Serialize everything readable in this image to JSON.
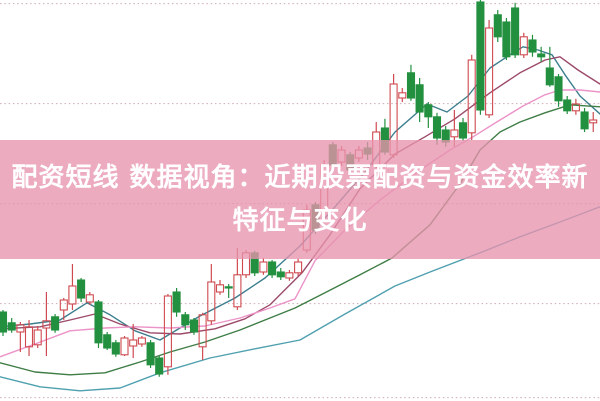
{
  "banner": {
    "title_line1": "配资短线 数据视角：近期股票配资与资金效率新",
    "title_line2": "特征与变化",
    "bg_color": "rgba(231,147,173,0.78)",
    "text_color": "#ffffff"
  },
  "chart_data": {
    "type": "candlestick",
    "title": "",
    "xlabel": "",
    "ylabel": "",
    "ylim": [
      0,
      100
    ],
    "grid": "horizontal-dotted",
    "legend": "none",
    "x_start": 3,
    "x_step": 8.68,
    "candle_width": 7,
    "up_color": "#cf4a50",
    "down_color": "#23903f",
    "grid_color": "#cfa9b4",
    "gridline_prices": [
      99.1,
      74.1,
      49.1,
      24.1,
      0.6
    ],
    "candles": [
      [
        22.0,
        22.5,
        16.0,
        17.0
      ],
      [
        19.3,
        20.5,
        16.8,
        17.5
      ],
      [
        17.0,
        19.5,
        12.0,
        18.8
      ],
      [
        13.3,
        20.0,
        11.0,
        18.3
      ],
      [
        13.8,
        18.5,
        13.0,
        17.5
      ],
      [
        18.0,
        27.0,
        11.0,
        19.8
      ],
      [
        20.8,
        21.5,
        16.8,
        17.5
      ],
      [
        22.5,
        25.5,
        20.0,
        25.0
      ],
      [
        24.0,
        34.0,
        22.5,
        28.5
      ],
      [
        30.0,
        30.5,
        24.5,
        25.5
      ],
      [
        24.5,
        27.0,
        23.8,
        26.3
      ],
      [
        24.5,
        25.0,
        13.0,
        14.3
      ],
      [
        16.3,
        17.0,
        12.5,
        13.0
      ],
      [
        14.3,
        15.0,
        10.8,
        11.5
      ],
      [
        11.3,
        16.0,
        11.0,
        15.5
      ],
      [
        13.5,
        19.0,
        10.5,
        15.0
      ],
      [
        14.0,
        16.0,
        13.3,
        15.5
      ],
      [
        14.3,
        15.0,
        8.0,
        8.8
      ],
      [
        10.5,
        11.0,
        5.8,
        6.5
      ],
      [
        8.3,
        26.5,
        6.3,
        26.0
      ],
      [
        27.0,
        28.0,
        20.8,
        22.0
      ],
      [
        21.3,
        22.0,
        17.5,
        18.8
      ],
      [
        20.0,
        20.5,
        16.3,
        17.0
      ],
      [
        13.3,
        21.8,
        10.0,
        21.3
      ],
      [
        19.8,
        34.0,
        18.8,
        29.5
      ],
      [
        27.0,
        30.0,
        26.3,
        28.8
      ],
      [
        28.3,
        29.0,
        25.5,
        28.0
      ],
      [
        23.3,
        38.0,
        22.5,
        31.3
      ],
      [
        31.3,
        37.5,
        30.5,
        36.8
      ],
      [
        36.8,
        37.3,
        31.0,
        31.8
      ],
      [
        32.0,
        35.5,
        31.3,
        34.5
      ],
      [
        34.5,
        35.0,
        30.5,
        31.3
      ],
      [
        32.0,
        33.0,
        30.0,
        30.8
      ],
      [
        30.5,
        32.5,
        29.8,
        31.8
      ],
      [
        31.8,
        35.3,
        31.0,
        34.5
      ],
      [
        37.5,
        48.8,
        36.8,
        47.5
      ],
      [
        48.8,
        49.5,
        41.5,
        42.5
      ],
      [
        47.5,
        60.0,
        46.5,
        58.8
      ],
      [
        63.8,
        64.5,
        57.5,
        58.8
      ],
      [
        59.5,
        63.5,
        58.5,
        62.5
      ],
      [
        61.3,
        62.0,
        56.3,
        57.5
      ],
      [
        60.5,
        63.5,
        59.5,
        62.5
      ],
      [
        63.0,
        64.5,
        60.0,
        61.5
      ],
      [
        58.8,
        69.5,
        58.0,
        67.0
      ],
      [
        68.0,
        70.3,
        61.3,
        62.0
      ],
      [
        61.3,
        81.5,
        60.5,
        79.0
      ],
      [
        75.5,
        78.0,
        74.5,
        76.8
      ],
      [
        81.8,
        83.8,
        74.8,
        75.5
      ],
      [
        78.8,
        80.5,
        69.5,
        72.0
      ],
      [
        73.8,
        74.5,
        68.0,
        70.8
      ],
      [
        70.8,
        71.8,
        63.8,
        65.5
      ],
      [
        67.5,
        68.5,
        63.3,
        64.5
      ],
      [
        65.8,
        72.5,
        63.3,
        67.5
      ],
      [
        69.3,
        70.5,
        64.8,
        65.5
      ],
      [
        66.8,
        86.3,
        65.0,
        85.0
      ],
      [
        99.5,
        100.0,
        71.3,
        72.5
      ],
      [
        71.3,
        95.0,
        70.5,
        93.0
      ],
      [
        96.3,
        97.5,
        89.5,
        90.8
      ],
      [
        94.5,
        95.5,
        85.0,
        85.8
      ],
      [
        98.0,
        99.3,
        85.5,
        86.3
      ],
      [
        86.3,
        91.8,
        85.5,
        90.8
      ],
      [
        90.0,
        91.3,
        85.8,
        87.0
      ],
      [
        86.5,
        88.3,
        84.5,
        85.8
      ],
      [
        83.0,
        88.3,
        78.3,
        78.8
      ],
      [
        80.8,
        81.5,
        73.3,
        74.8
      ],
      [
        75.0,
        76.0,
        71.5,
        72.3
      ],
      [
        72.3,
        75.3,
        71.3,
        74.0
      ],
      [
        72.0,
        73.0,
        67.0,
        67.8
      ],
      [
        69.3,
        72.0,
        67.0,
        70.0
      ]
    ],
    "ma_lines": [
      {
        "name": "ma-short-teal",
        "color": "#3c7e8e",
        "points": [
          [
            0,
            18.3
          ],
          [
            30,
            19.0
          ],
          [
            60,
            20.0
          ],
          [
            87,
            24.3
          ],
          [
            110,
            21.3
          ],
          [
            135,
            17.3
          ],
          [
            160,
            15.0
          ],
          [
            200,
            21.0
          ],
          [
            235,
            25.5
          ],
          [
            265,
            30.5
          ],
          [
            300,
            38.5
          ],
          [
            335,
            48.3
          ],
          [
            365,
            57.0
          ],
          [
            395,
            67.0
          ],
          [
            427,
            74.0
          ],
          [
            447,
            72.0
          ],
          [
            468,
            76.0
          ],
          [
            490,
            83.0
          ],
          [
            510,
            86.3
          ],
          [
            523,
            88.3
          ],
          [
            538,
            87.5
          ],
          [
            552,
            86.3
          ],
          [
            565,
            81.3
          ],
          [
            580,
            76.0
          ],
          [
            600,
            71.5
          ]
        ]
      },
      {
        "name": "ma-mid-maroon",
        "color": "#9c4a6a",
        "points": [
          [
            0,
            17.8
          ],
          [
            40,
            18.3
          ],
          [
            70,
            20.0
          ],
          [
            95,
            21.5
          ],
          [
            120,
            19.0
          ],
          [
            150,
            16.8
          ],
          [
            180,
            16.5
          ],
          [
            215,
            17.8
          ],
          [
            245,
            20.3
          ],
          [
            270,
            23.8
          ],
          [
            302,
            31.8
          ],
          [
            330,
            41.3
          ],
          [
            360,
            52.8
          ],
          [
            395,
            61.5
          ],
          [
            425,
            65.8
          ],
          [
            455,
            70.3
          ],
          [
            490,
            76.8
          ],
          [
            520,
            81.8
          ],
          [
            545,
            85.0
          ],
          [
            560,
            85.8
          ],
          [
            578,
            82.5
          ],
          [
            600,
            79.0
          ]
        ]
      },
      {
        "name": "ma-mid-magenta",
        "color": "#ec93c8",
        "points": [
          [
            0,
            10.8
          ],
          [
            35,
            14.0
          ],
          [
            70,
            17.3
          ],
          [
            105,
            18.0
          ],
          [
            135,
            18.3
          ],
          [
            170,
            18.0
          ],
          [
            205,
            18.5
          ],
          [
            240,
            20.5
          ],
          [
            270,
            23.0
          ],
          [
            295,
            25.3
          ],
          [
            315,
            34.8
          ],
          [
            345,
            42.5
          ],
          [
            380,
            50.0
          ],
          [
            420,
            57.5
          ],
          [
            450,
            62.5
          ],
          [
            473,
            65.8
          ],
          [
            500,
            70.0
          ],
          [
            523,
            73.5
          ],
          [
            545,
            76.3
          ],
          [
            560,
            77.5
          ],
          [
            580,
            77.5
          ],
          [
            600,
            77.0
          ]
        ]
      },
      {
        "name": "ma-long-green",
        "color": "#3e7d45",
        "points": [
          [
            0,
            9.3
          ],
          [
            35,
            7.0
          ],
          [
            70,
            6.3
          ],
          [
            105,
            6.8
          ],
          [
            140,
            9.5
          ],
          [
            170,
            12.0
          ],
          [
            205,
            14.5
          ],
          [
            240,
            17.5
          ],
          [
            270,
            20.5
          ],
          [
            295,
            23.0
          ],
          [
            325,
            26.8
          ],
          [
            360,
            31.3
          ],
          [
            392,
            35.5
          ],
          [
            430,
            43.8
          ],
          [
            460,
            54.0
          ],
          [
            480,
            62.5
          ],
          [
            500,
            67.0
          ],
          [
            520,
            69.5
          ],
          [
            545,
            71.8
          ],
          [
            570,
            73.8
          ],
          [
            600,
            73.3
          ]
        ]
      },
      {
        "name": "ma-longest-cyan",
        "color": "#4fa0af",
        "points": [
          [
            0,
            5.8
          ],
          [
            40,
            3.3
          ],
          [
            80,
            2.3
          ],
          [
            120,
            3.0
          ],
          [
            160,
            6.8
          ],
          [
            210,
            10.5
          ],
          [
            255,
            12.8
          ],
          [
            300,
            15.0
          ],
          [
            345,
            21.5
          ],
          [
            395,
            28.5
          ],
          [
            430,
            32.0
          ],
          [
            480,
            36.8
          ],
          [
            520,
            40.8
          ],
          [
            560,
            44.5
          ],
          [
            600,
            48.3
          ]
        ]
      }
    ]
  }
}
